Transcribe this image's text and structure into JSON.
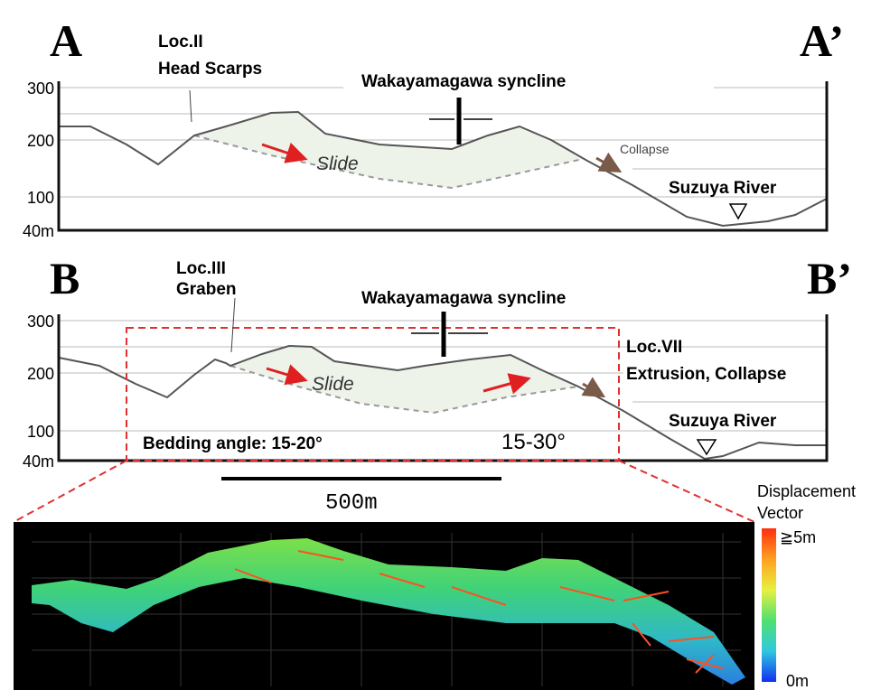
{
  "panel_a": {
    "label_left": "A",
    "label_right": "A’",
    "loc": "Loc.II",
    "loc_desc": "Head Scarps",
    "syncline": "Wakayamagawa syncline",
    "slide": "Slide",
    "collapse": "Collapse",
    "river": "Suzuya River",
    "depth_labels": [
      "300",
      "200",
      "100",
      "40m"
    ]
  },
  "panel_b": {
    "label_left": "B",
    "label_right": "B’",
    "loc": "Loc.III",
    "loc_desc": "Graben",
    "syncline": "Wakayamagawa syncline",
    "loc_right": "Loc.VII",
    "loc_right_desc": "Extrusion, Collapse",
    "slide": "Slide",
    "river": "Suzuya River",
    "bedding": "Bedding angle: 15-20°",
    "bedding_right": "15-30°",
    "depth_labels": [
      "300",
      "200",
      "100",
      "40m"
    ]
  },
  "scale": "500m",
  "legend": {
    "title_line1": "Displacement",
    "title_line2": "Vector",
    "max": "≧5m",
    "min": "0m"
  }
}
